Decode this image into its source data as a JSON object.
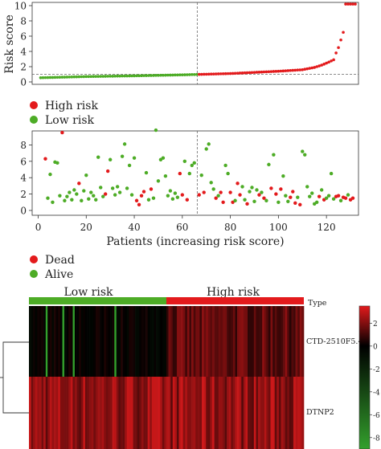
{
  "colors": {
    "high": "#e31a1c",
    "low": "#4dac26",
    "axis": "#333333",
    "heat_low": "#33a02c",
    "heat_mid": "#000000",
    "heat_high": "#e31a1c"
  },
  "chart_data": [
    {
      "type": "scatter",
      "panel": "risk-score",
      "ylabel": "Risk score",
      "xlim": [
        0,
        132
      ],
      "ylim": [
        0,
        10
      ],
      "y_ticks": [
        "0",
        "2",
        "4",
        "6",
        "8",
        "10"
      ],
      "cutoff_index": 66,
      "cutoff_score": 1.0,
      "n_patients": 132,
      "series": [
        {
          "name": "High risk",
          "color": "#e31a1c"
        },
        {
          "name": "Low risk",
          "color": "#4dac26"
        }
      ],
      "score_anchors": [
        [
          1,
          0.55
        ],
        [
          20,
          0.7
        ],
        [
          40,
          0.8
        ],
        [
          60,
          0.93
        ],
        [
          66,
          0.98
        ],
        [
          80,
          1.1
        ],
        [
          100,
          1.4
        ],
        [
          110,
          1.6
        ],
        [
          115,
          1.9
        ],
        [
          118,
          2.2
        ],
        [
          121,
          2.6
        ],
        [
          123,
          2.9
        ],
        [
          124,
          3.8
        ],
        [
          125,
          4.5
        ],
        [
          126,
          5.5
        ],
        [
          127,
          6.5
        ],
        [
          128,
          10.2
        ],
        [
          132,
          10.2
        ]
      ]
    },
    {
      "type": "scatter",
      "panel": "survival-status",
      "xlabel": "Patients (increasing risk score)",
      "xlim": [
        0,
        132
      ],
      "ylim": [
        0,
        10
      ],
      "x_ticks": [
        "0",
        "20",
        "40",
        "60",
        "80",
        "100",
        "120"
      ],
      "y_ticks": [
        "0",
        "2",
        "4",
        "6",
        "8"
      ],
      "cutoff_index": 66,
      "series": [
        {
          "name": "Dead",
          "color": "#e31a1c"
        },
        {
          "name": "Alive",
          "color": "#4dac26"
        }
      ],
      "points": [
        [
          3,
          6.3,
          "d"
        ],
        [
          4,
          1.5,
          "a"
        ],
        [
          5,
          4.4,
          "a"
        ],
        [
          6,
          1.0,
          "a"
        ],
        [
          7,
          5.9,
          "a"
        ],
        [
          8,
          5.8,
          "a"
        ],
        [
          9,
          1.8,
          "a"
        ],
        [
          10,
          9.5,
          "d"
        ],
        [
          11,
          1.2,
          "a"
        ],
        [
          12,
          1.7,
          "a"
        ],
        [
          13,
          2.2,
          "a"
        ],
        [
          14,
          1.3,
          "a"
        ],
        [
          15,
          2.5,
          "a"
        ],
        [
          16,
          2.0,
          "a"
        ],
        [
          17,
          3.3,
          "d"
        ],
        [
          18,
          1.2,
          "a"
        ],
        [
          19,
          2.4,
          "a"
        ],
        [
          20,
          4.3,
          "a"
        ],
        [
          21,
          1.4,
          "a"
        ],
        [
          22,
          2.2,
          "a"
        ],
        [
          23,
          1.8,
          "a"
        ],
        [
          24,
          1.3,
          "a"
        ],
        [
          25,
          6.5,
          "a"
        ],
        [
          26,
          2.8,
          "a"
        ],
        [
          27,
          1.7,
          "a"
        ],
        [
          28,
          2.0,
          "d"
        ],
        [
          29,
          4.8,
          "d"
        ],
        [
          30,
          6.2,
          "a"
        ],
        [
          31,
          2.7,
          "a"
        ],
        [
          32,
          1.9,
          "a"
        ],
        [
          33,
          2.9,
          "a"
        ],
        [
          34,
          2.2,
          "a"
        ],
        [
          35,
          6.6,
          "a"
        ],
        [
          36,
          8.1,
          "a"
        ],
        [
          37,
          2.7,
          "a"
        ],
        [
          38,
          5.5,
          "a"
        ],
        [
          39,
          1.9,
          "a"
        ],
        [
          40,
          6.4,
          "a"
        ],
        [
          41,
          1.2,
          "d"
        ],
        [
          42,
          0.7,
          "d"
        ],
        [
          43,
          1.8,
          "d"
        ],
        [
          44,
          2.3,
          "d"
        ],
        [
          45,
          4.6,
          "a"
        ],
        [
          46,
          1.3,
          "a"
        ],
        [
          47,
          2.6,
          "d"
        ],
        [
          48,
          1.5,
          "a"
        ],
        [
          49,
          9.8,
          "a"
        ],
        [
          50,
          3.6,
          "a"
        ],
        [
          51,
          6.2,
          "a"
        ],
        [
          52,
          6.4,
          "a"
        ],
        [
          53,
          4.2,
          "a"
        ],
        [
          54,
          1.8,
          "a"
        ],
        [
          55,
          2.4,
          "a"
        ],
        [
          56,
          1.4,
          "a"
        ],
        [
          57,
          2.1,
          "a"
        ],
        [
          58,
          1.6,
          "a"
        ],
        [
          59,
          4.5,
          "d"
        ],
        [
          60,
          1.9,
          "d"
        ],
        [
          61,
          6.0,
          "a"
        ],
        [
          62,
          1.3,
          "d"
        ],
        [
          63,
          4.5,
          "a"
        ],
        [
          64,
          5.5,
          "a"
        ],
        [
          65,
          5.8,
          "a"
        ],
        [
          67,
          1.9,
          "d"
        ],
        [
          68,
          4.3,
          "a"
        ],
        [
          69,
          2.2,
          "d"
        ],
        [
          70,
          7.5,
          "a"
        ],
        [
          71,
          8.1,
          "a"
        ],
        [
          72,
          3.4,
          "a"
        ],
        [
          73,
          2.6,
          "a"
        ],
        [
          74,
          1.5,
          "d"
        ],
        [
          75,
          1.8,
          "a"
        ],
        [
          76,
          2.2,
          "d"
        ],
        [
          77,
          1.0,
          "d"
        ],
        [
          78,
          5.5,
          "a"
        ],
        [
          79,
          4.5,
          "a"
        ],
        [
          80,
          2.2,
          "d"
        ],
        [
          81,
          1.0,
          "d"
        ],
        [
          82,
          1.2,
          "a"
        ],
        [
          83,
          3.3,
          "d"
        ],
        [
          84,
          1.9,
          "d"
        ],
        [
          85,
          2.9,
          "a"
        ],
        [
          86,
          1.3,
          "a"
        ],
        [
          87,
          0.8,
          "d"
        ],
        [
          88,
          2.3,
          "a"
        ],
        [
          89,
          2.8,
          "a"
        ],
        [
          90,
          1.1,
          "a"
        ],
        [
          91,
          2.5,
          "a"
        ],
        [
          92,
          1.9,
          "d"
        ],
        [
          93,
          2.2,
          "a"
        ],
        [
          94,
          1.5,
          "d"
        ],
        [
          95,
          1.2,
          "a"
        ],
        [
          96,
          5.6,
          "a"
        ],
        [
          97,
          2.7,
          "d"
        ],
        [
          98,
          6.8,
          "a"
        ],
        [
          99,
          2.0,
          "d"
        ],
        [
          100,
          1.0,
          "a"
        ],
        [
          101,
          2.6,
          "d"
        ],
        [
          102,
          4.2,
          "a"
        ],
        [
          103,
          1.8,
          "a"
        ],
        [
          104,
          1.1,
          "a"
        ],
        [
          105,
          1.6,
          "d"
        ],
        [
          106,
          2.3,
          "d"
        ],
        [
          107,
          0.9,
          "d"
        ],
        [
          108,
          1.6,
          "a"
        ],
        [
          109,
          0.7,
          "d"
        ],
        [
          110,
          7.2,
          "a"
        ],
        [
          111,
          6.8,
          "a"
        ],
        [
          112,
          2.9,
          "a"
        ],
        [
          113,
          1.7,
          "a"
        ],
        [
          114,
          2.1,
          "a"
        ],
        [
          115,
          0.8,
          "a"
        ],
        [
          116,
          1.0,
          "a"
        ],
        [
          117,
          1.7,
          "d"
        ],
        [
          118,
          2.5,
          "a"
        ],
        [
          119,
          1.3,
          "d"
        ],
        [
          120,
          1.5,
          "a"
        ],
        [
          121,
          1.8,
          "a"
        ],
        [
          122,
          4.5,
          "a"
        ],
        [
          123,
          1.4,
          "a"
        ],
        [
          124,
          1.7,
          "d"
        ],
        [
          125,
          1.8,
          "d"
        ],
        [
          126,
          1.2,
          "a"
        ],
        [
          127,
          1.6,
          "d"
        ],
        [
          128,
          1.5,
          "d"
        ],
        [
          129,
          1.9,
          "a"
        ],
        [
          130,
          1.3,
          "d"
        ],
        [
          131,
          1.5,
          "d"
        ]
      ]
    },
    {
      "type": "heatmap",
      "panel": "expression",
      "column_groups": [
        {
          "label": "Low risk",
          "count": 66,
          "color": "#4dac26"
        },
        {
          "label": "High risk",
          "count": 66,
          "color": "#e31a1c"
        }
      ],
      "type_label": "Type",
      "rows": [
        "CTD-2510F5.4",
        "DTNP2"
      ],
      "color_scale": {
        "min": -9,
        "max": 3.5,
        "ticks": [
          "2",
          "0",
          "-2",
          "-4",
          "-6",
          "-8"
        ]
      },
      "highlight_columns": [
        8,
        16,
        21,
        41
      ]
    }
  ]
}
